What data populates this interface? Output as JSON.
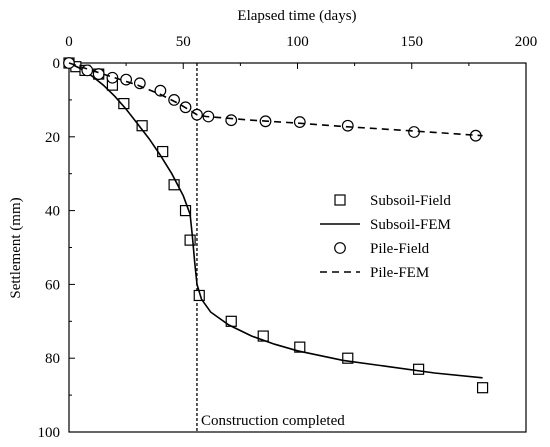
{
  "chart_data": {
    "type": "scatter",
    "xlabel": "Elapsed time (days)",
    "ylabel": "Settlement (mm)",
    "x_axis_position": "top",
    "y_axis_inverted": true,
    "xlim": [
      0,
      200
    ],
    "ylim": [
      0,
      100
    ],
    "xticks": [
      0,
      50,
      100,
      150,
      200
    ],
    "yticks": [
      0,
      20,
      40,
      60,
      80,
      100
    ],
    "grid": false,
    "legend_placement": "center-right",
    "annotation": {
      "text": "Construction completed",
      "x": 56
    },
    "series": [
      {
        "name": "Subsoil-Field",
        "kind": "markers",
        "marker": "square",
        "points": [
          [
            0,
            0
          ],
          [
            3,
            1
          ],
          [
            7,
            2
          ],
          [
            13,
            3
          ],
          [
            19,
            6
          ],
          [
            24,
            11
          ],
          [
            32,
            17
          ],
          [
            41,
            24
          ],
          [
            46,
            33
          ],
          [
            51,
            40
          ],
          [
            53,
            48
          ],
          [
            57,
            63
          ],
          [
            71,
            70
          ],
          [
            85,
            74
          ],
          [
            101,
            77
          ],
          [
            122,
            80
          ],
          [
            153,
            83
          ],
          [
            181,
            88
          ]
        ]
      },
      {
        "name": "Subsoil-FEM",
        "kind": "line",
        "dash": "solid",
        "points": [
          [
            0,
            0
          ],
          [
            5,
            1.5
          ],
          [
            10,
            3.5
          ],
          [
            15,
            6
          ],
          [
            20,
            9
          ],
          [
            25,
            12.5
          ],
          [
            30,
            16.5
          ],
          [
            35,
            20.5
          ],
          [
            40,
            25
          ],
          [
            45,
            30
          ],
          [
            50,
            36
          ],
          [
            53,
            41
          ],
          [
            54,
            47
          ],
          [
            55,
            54
          ],
          [
            56,
            60
          ],
          [
            58,
            64
          ],
          [
            62,
            67.5
          ],
          [
            70,
            71
          ],
          [
            80,
            74
          ],
          [
            90,
            76.2
          ],
          [
            100,
            78
          ],
          [
            120,
            80.6
          ],
          [
            140,
            82.3
          ],
          [
            160,
            84
          ],
          [
            181,
            85.3
          ]
        ]
      },
      {
        "name": "Pile-Field",
        "kind": "markers",
        "marker": "circle",
        "points": [
          [
            0,
            0
          ],
          [
            8,
            2
          ],
          [
            13,
            3
          ],
          [
            19,
            4
          ],
          [
            25,
            4.5
          ],
          [
            31,
            5.5
          ],
          [
            40,
            7.5
          ],
          [
            46,
            10
          ],
          [
            51,
            12
          ],
          [
            56,
            14
          ],
          [
            61,
            14.5
          ],
          [
            71,
            15.5
          ],
          [
            86,
            15.8
          ],
          [
            101,
            16
          ],
          [
            122,
            17
          ],
          [
            151,
            18.7
          ],
          [
            178,
            19.7
          ]
        ]
      },
      {
        "name": "Pile-FEM",
        "kind": "line",
        "dash": "dashed",
        "points": [
          [
            0,
            0
          ],
          [
            10,
            2
          ],
          [
            20,
            4
          ],
          [
            30,
            6
          ],
          [
            40,
            8.5
          ],
          [
            48,
            11
          ],
          [
            52,
            12.5
          ],
          [
            56,
            14
          ],
          [
            60,
            14.5
          ],
          [
            70,
            15
          ],
          [
            80,
            15.5
          ],
          [
            100,
            16.3
          ],
          [
            120,
            17.2
          ],
          [
            140,
            18
          ],
          [
            160,
            18.8
          ],
          [
            181,
            19.7
          ]
        ]
      }
    ]
  }
}
